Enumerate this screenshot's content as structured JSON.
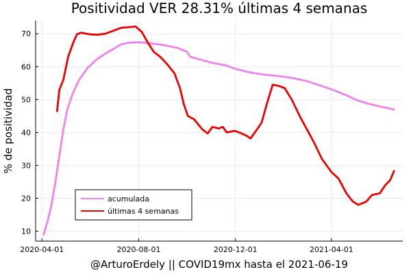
{
  "chart_data": {
    "type": "line",
    "title": "Positividad VER   28.31%  últimas 4 semanas",
    "xlabel": "@ArturoErdely || COVID19mx hasta el 2021-06-19",
    "ylabel": "% de positividad",
    "xlim": [
      "2020-03-24",
      "2021-06-30"
    ],
    "ylim": [
      7,
      74
    ],
    "x_ticks": [
      "2020-04-01",
      "2020-08-01",
      "2020-12-01",
      "2021-04-01"
    ],
    "y_ticks": [
      10,
      20,
      30,
      40,
      50,
      60,
      70
    ],
    "grid": true,
    "legend_position": "bottom-left",
    "series": [
      {
        "name": "acumulada",
        "color": "#ee82ee",
        "points": [
          [
            "2020-04-03",
            9
          ],
          [
            "2020-04-08",
            13
          ],
          [
            "2020-04-13",
            18
          ],
          [
            "2020-04-18",
            25
          ],
          [
            "2020-04-23",
            33
          ],
          [
            "2020-04-28",
            41
          ],
          [
            "2020-05-03",
            47
          ],
          [
            "2020-05-10",
            52
          ],
          [
            "2020-05-18",
            56
          ],
          [
            "2020-05-28",
            59.5
          ],
          [
            "2020-06-08",
            62
          ],
          [
            "2020-06-20",
            64
          ],
          [
            "2020-07-01",
            65.5
          ],
          [
            "2020-07-10",
            66.8
          ],
          [
            "2020-07-20",
            67.3
          ],
          [
            "2020-08-01",
            67.4
          ],
          [
            "2020-08-15",
            67.1
          ],
          [
            "2020-09-01",
            66.6
          ],
          [
            "2020-09-20",
            65.6
          ],
          [
            "2020-10-01",
            64.5
          ],
          [
            "2020-10-05",
            63
          ],
          [
            "2020-10-20",
            62
          ],
          [
            "2020-11-01",
            61.2
          ],
          [
            "2020-11-20",
            60.3
          ],
          [
            "2020-12-01",
            59.3
          ],
          [
            "2020-12-20",
            58.2
          ],
          [
            "2021-01-05",
            57.6
          ],
          [
            "2021-01-25",
            57.1
          ],
          [
            "2021-02-10",
            56.6
          ],
          [
            "2021-03-01",
            55.6
          ],
          [
            "2021-03-20",
            54.1
          ],
          [
            "2021-04-01",
            53.1
          ],
          [
            "2021-04-20",
            51.3
          ],
          [
            "2021-05-01",
            50
          ],
          [
            "2021-05-15",
            48.9
          ],
          [
            "2021-06-01",
            47.9
          ],
          [
            "2021-06-19",
            47
          ]
        ]
      },
      {
        "name": "últimas 4 semanas",
        "color": "#ee0000",
        "points": [
          [
            "2020-04-20",
            46.5
          ],
          [
            "2020-04-23",
            53
          ],
          [
            "2020-04-28",
            56
          ],
          [
            "2020-05-04",
            63
          ],
          [
            "2020-05-10",
            67
          ],
          [
            "2020-05-15",
            69.8
          ],
          [
            "2020-05-20",
            70.3
          ],
          [
            "2020-06-01",
            69.8
          ],
          [
            "2020-06-10",
            69.7
          ],
          [
            "2020-06-20",
            70
          ],
          [
            "2020-07-01",
            71
          ],
          [
            "2020-07-10",
            71.8
          ],
          [
            "2020-07-20",
            72
          ],
          [
            "2020-07-28",
            72.2
          ],
          [
            "2020-08-05",
            70.5
          ],
          [
            "2020-08-12",
            67.5
          ],
          [
            "2020-08-20",
            64.5
          ],
          [
            "2020-08-28",
            63
          ],
          [
            "2020-09-05",
            61
          ],
          [
            "2020-09-15",
            58
          ],
          [
            "2020-09-22",
            53.5
          ],
          [
            "2020-09-27",
            48.5
          ],
          [
            "2020-10-02",
            45
          ],
          [
            "2020-10-10",
            44
          ],
          [
            "2020-10-20",
            41
          ],
          [
            "2020-10-27",
            39.7
          ],
          [
            "2020-11-02",
            41.7
          ],
          [
            "2020-11-10",
            41.2
          ],
          [
            "2020-11-15",
            41.7
          ],
          [
            "2020-11-20",
            40
          ],
          [
            "2020-11-30",
            40.5
          ],
          [
            "2020-12-08",
            39.8
          ],
          [
            "2020-12-15",
            39
          ],
          [
            "2020-12-20",
            38.2
          ],
          [
            "2020-12-27",
            40.5
          ],
          [
            "2021-01-03",
            43
          ],
          [
            "2021-01-10",
            49
          ],
          [
            "2021-01-17",
            54.5
          ],
          [
            "2021-01-24",
            54.2
          ],
          [
            "2021-02-01",
            53.5
          ],
          [
            "2021-02-10",
            50
          ],
          [
            "2021-02-20",
            45
          ],
          [
            "2021-03-01",
            41
          ],
          [
            "2021-03-10",
            37
          ],
          [
            "2021-03-20",
            32
          ],
          [
            "2021-04-01",
            28
          ],
          [
            "2021-04-10",
            26
          ],
          [
            "2021-04-20",
            21.5
          ],
          [
            "2021-04-28",
            19
          ],
          [
            "2021-05-05",
            18
          ],
          [
            "2021-05-15",
            19
          ],
          [
            "2021-05-22",
            21
          ],
          [
            "2021-06-01",
            21.5
          ],
          [
            "2021-06-08",
            24
          ],
          [
            "2021-06-14",
            25.5
          ],
          [
            "2021-06-19",
            28.3
          ]
        ]
      }
    ]
  }
}
